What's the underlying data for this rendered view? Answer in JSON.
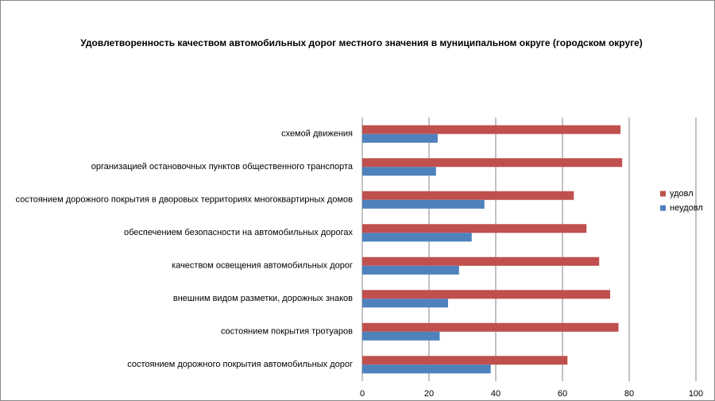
{
  "chart_data": {
    "type": "barh",
    "title": "Удовлетворенность качеством автомобильных дорог местного значения в муниципальном округе (городском округе)",
    "categories": [
      "схемой движения",
      "организацией остановочных пунктов общественного транспорта",
      "состоянием дорожного покрытия в дворовых территориях многоквартирных домов",
      "обеспечением безопасности на автомобильных дорогах",
      "качеством освещения автомобильных дорог",
      "внешним видом разметки, дорожных знаков",
      "состоянием покрытия тротуаров",
      "состоянием дорожного покрытия автомобильных дорог"
    ],
    "series": [
      {
        "name": "удовл",
        "color": "#c0504d",
        "values": [
          77.4,
          77.9,
          63.4,
          67.2,
          71.0,
          74.3,
          76.8,
          61.5
        ]
      },
      {
        "name": "неудовл",
        "color": "#4f81bd",
        "values": [
          22.6,
          22.1,
          36.6,
          32.8,
          29.0,
          25.7,
          23.2,
          38.5
        ]
      }
    ],
    "xlim": [
      0,
      100
    ],
    "xticks": [
      0,
      20,
      40,
      60,
      80,
      100
    ],
    "grid": true,
    "legend": "right"
  }
}
